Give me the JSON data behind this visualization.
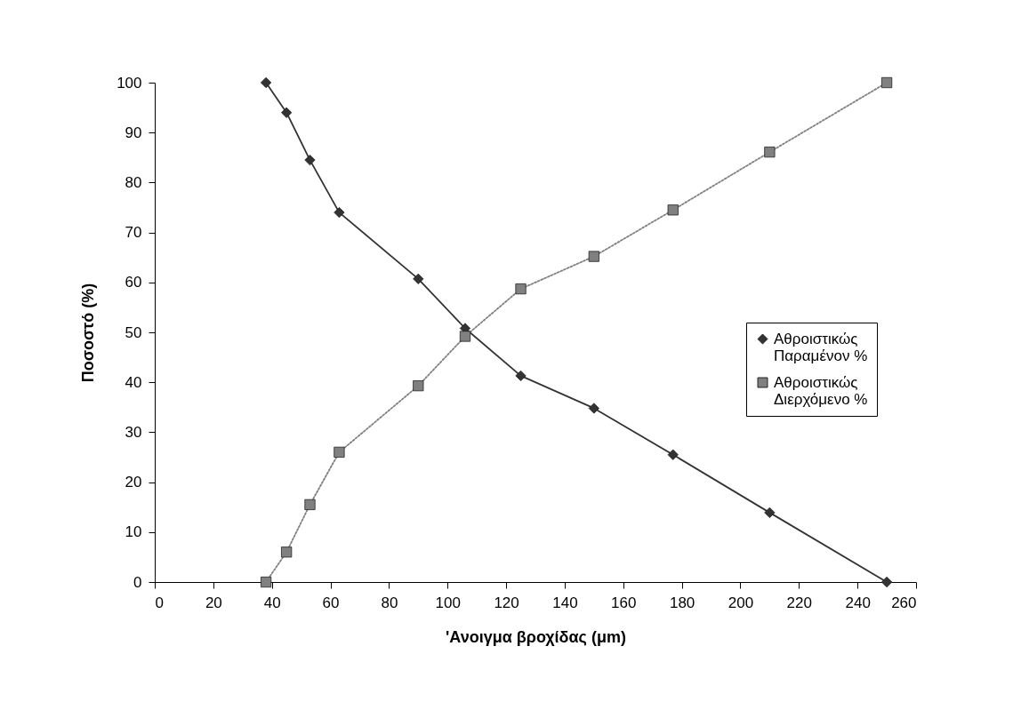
{
  "chart_data": {
    "type": "line",
    "xlabel": "'Ανοιγμα βροχίδας (μm)",
    "ylabel": "Ποσοστό (%)",
    "xlim": [
      0,
      260
    ],
    "xticks": [
      0,
      20,
      40,
      60,
      80,
      100,
      120,
      140,
      160,
      180,
      200,
      220,
      240,
      260
    ],
    "ylim": [
      0,
      100
    ],
    "yticks": [
      0,
      10,
      20,
      30,
      40,
      50,
      60,
      70,
      80,
      90,
      100
    ],
    "grid": false,
    "legend": "right",
    "series": [
      {
        "name": "Αθροιστικώς Παραμένον %",
        "color": "#333333",
        "marker": "diamond",
        "line_style": "solid",
        "x": [
          38,
          45,
          53,
          63,
          90,
          106,
          125,
          150,
          177,
          210,
          250
        ],
        "values": [
          100,
          94,
          84.5,
          74,
          60.7,
          50.8,
          41.3,
          34.8,
          25.5,
          13.9,
          0
        ]
      },
      {
        "name": "Αθροιστικώς Διερχόμενο %",
        "color": "#808080",
        "marker": "square",
        "line_style": "dotted",
        "x": [
          38,
          45,
          53,
          63,
          90,
          106,
          125,
          150,
          177,
          210,
          250
        ],
        "values": [
          0,
          6,
          15.5,
          26,
          39.3,
          49.2,
          58.7,
          65.2,
          74.5,
          86.1,
          100
        ]
      }
    ]
  }
}
